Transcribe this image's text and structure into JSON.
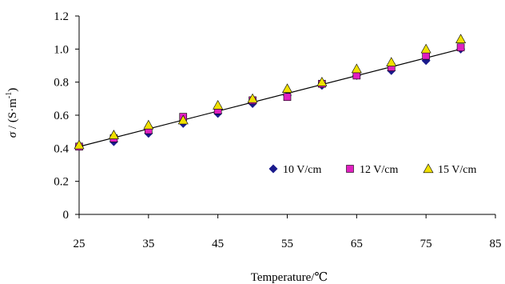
{
  "chart_data": {
    "type": "scatter",
    "xlabel": "Temperature/℃",
    "ylabel_symbol": "σ",
    "ylabel_unit": " / (S·m",
    "ylabel_exp": "-1",
    "ylabel_close": ")",
    "xlim": [
      25,
      85
    ],
    "ylim": [
      0,
      1.2
    ],
    "x_ticks": [
      "25",
      "35",
      "45",
      "55",
      "65",
      "75",
      "85"
    ],
    "y_ticks": [
      "0",
      "0.2",
      "0.4",
      "0.6",
      "0.8",
      "1.0",
      "1.2"
    ],
    "x_tick_values": [
      25,
      35,
      45,
      55,
      65,
      75,
      85
    ],
    "y_tick_values": [
      0,
      0.2,
      0.4,
      0.6,
      0.8,
      1.0,
      1.2
    ],
    "grid": false,
    "legend_position": "bottom-right",
    "series": [
      {
        "name": "10 V/cm",
        "marker": "diamond",
        "color": "#1a1a8c",
        "x": [
          25,
          30,
          35,
          40,
          45,
          50,
          55,
          60,
          65,
          70,
          75,
          80
        ],
        "y": [
          0.41,
          0.44,
          0.49,
          0.55,
          0.61,
          0.67,
          0.72,
          0.78,
          0.84,
          0.87,
          0.93,
          1.0
        ]
      },
      {
        "name": "12 V/cm",
        "marker": "square",
        "color": "#e020c0",
        "x": [
          25,
          30,
          35,
          40,
          45,
          50,
          55,
          60,
          65,
          70,
          75,
          80
        ],
        "y": [
          0.41,
          0.46,
          0.51,
          0.59,
          0.63,
          0.69,
          0.71,
          0.79,
          0.84,
          0.89,
          0.96,
          1.01
        ]
      },
      {
        "name": "15 V/cm",
        "marker": "triangle",
        "color": "#f0e000",
        "x": [
          25,
          30,
          35,
          40,
          45,
          50,
          55,
          60,
          65,
          70,
          75,
          80
        ],
        "y": [
          0.42,
          0.48,
          0.54,
          0.57,
          0.66,
          0.7,
          0.76,
          0.8,
          0.88,
          0.92,
          1.0,
          1.06
        ]
      }
    ],
    "trendline": {
      "x": [
        25,
        80
      ],
      "y": [
        0.41,
        1.0
      ],
      "color": "#000000"
    }
  }
}
